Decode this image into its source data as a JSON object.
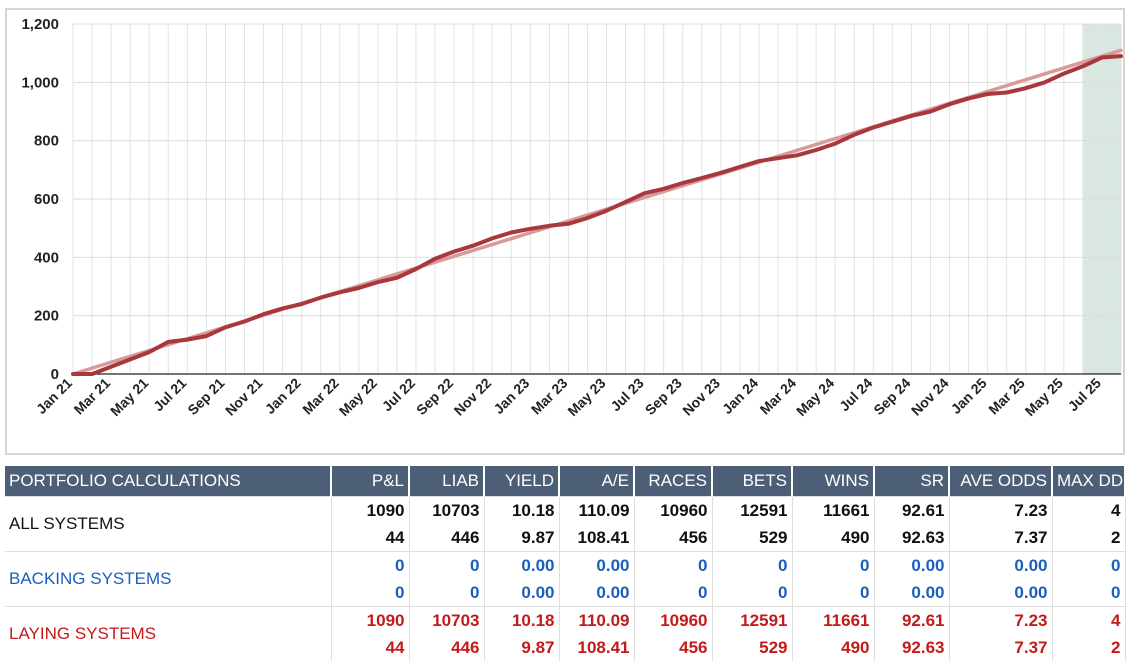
{
  "chart_data": {
    "type": "line",
    "y_ticks": [
      "0",
      "200",
      "400",
      "600",
      "800",
      "1,000",
      "1,200"
    ],
    "ylim": [
      0,
      1200
    ],
    "x_ticks": [
      "Jan 21",
      "Mar 21",
      "May 21",
      "Jul 21",
      "Sep 21",
      "Nov 21",
      "Jan 22",
      "Mar 22",
      "May 22",
      "Jul 22",
      "Sep 22",
      "Nov 22",
      "Jan 23",
      "Mar 23",
      "May 23",
      "Jul 23",
      "Sep 23",
      "Nov 23",
      "Jan 24",
      "Mar 24",
      "May 24",
      "Jul 24",
      "Sep 24",
      "Nov 24",
      "Jan 25",
      "Mar 25",
      "May 25",
      "Jul 25"
    ],
    "xlim": [
      "2021-01",
      "2025-08"
    ],
    "grid": true,
    "highlight_region": {
      "from": "2025-06",
      "to": "2025-08",
      "color": "#dae6e0"
    },
    "series": [
      {
        "color": "#a8383d",
        "points": [
          [
            "2021-01",
            0
          ],
          [
            "2021-02",
            0
          ],
          [
            "2021-03",
            25
          ],
          [
            "2021-04",
            50
          ],
          [
            "2021-05",
            75
          ],
          [
            "2021-06",
            110
          ],
          [
            "2021-07",
            118
          ],
          [
            "2021-08",
            130
          ],
          [
            "2021-09",
            160
          ],
          [
            "2021-10",
            180
          ],
          [
            "2021-11",
            205
          ],
          [
            "2021-12",
            225
          ],
          [
            "2022-01",
            240
          ],
          [
            "2022-02",
            262
          ],
          [
            "2022-03",
            280
          ],
          [
            "2022-04",
            295
          ],
          [
            "2022-05",
            315
          ],
          [
            "2022-06",
            330
          ],
          [
            "2022-07",
            360
          ],
          [
            "2022-08",
            395
          ],
          [
            "2022-09",
            420
          ],
          [
            "2022-10",
            440
          ],
          [
            "2022-11",
            465
          ],
          [
            "2022-12",
            485
          ],
          [
            "2023-01",
            498
          ],
          [
            "2023-02",
            508
          ],
          [
            "2023-03",
            515
          ],
          [
            "2023-04",
            535
          ],
          [
            "2023-05",
            560
          ],
          [
            "2023-06",
            590
          ],
          [
            "2023-07",
            620
          ],
          [
            "2023-08",
            635
          ],
          [
            "2023-09",
            655
          ],
          [
            "2023-10",
            672
          ],
          [
            "2023-11",
            690
          ],
          [
            "2023-12",
            710
          ],
          [
            "2024-01",
            730
          ],
          [
            "2024-02",
            740
          ],
          [
            "2024-03",
            750
          ],
          [
            "2024-04",
            768
          ],
          [
            "2024-05",
            790
          ],
          [
            "2024-06",
            820
          ],
          [
            "2024-07",
            845
          ],
          [
            "2024-08",
            865
          ],
          [
            "2024-09",
            885
          ],
          [
            "2024-10",
            900
          ],
          [
            "2024-11",
            925
          ],
          [
            "2024-12",
            945
          ],
          [
            "2025-01",
            960
          ],
          [
            "2025-02",
            965
          ],
          [
            "2025-03",
            980
          ],
          [
            "2025-04",
            1000
          ],
          [
            "2025-05",
            1030
          ],
          [
            "2025-06",
            1055
          ],
          [
            "2025-07",
            1085
          ],
          [
            "2025-08",
            1090
          ]
        ]
      },
      {
        "color": "#d99a9a",
        "points": [
          [
            "2021-01",
            0
          ],
          [
            "2025-08",
            1110
          ]
        ]
      }
    ]
  },
  "table": {
    "headers": [
      "PORTFOLIO CALCULATIONS",
      "P&L",
      "LIAB",
      "YIELD",
      "A/E",
      "RACES",
      "BETS",
      "WINS",
      "SR",
      "AVE ODDS",
      "MAX DD"
    ],
    "groups": [
      {
        "name": "ALL SYSTEMS",
        "rows": [
          [
            "1090",
            "10703",
            "10.18",
            "110.09",
            "10960",
            "12591",
            "11661",
            "92.61",
            "7.23",
            "4"
          ],
          [
            "44",
            "446",
            "9.87",
            "108.41",
            "456",
            "529",
            "490",
            "92.63",
            "7.37",
            "2"
          ]
        ]
      },
      {
        "name": "BACKING SYSTEMS",
        "rows": [
          [
            "0",
            "0",
            "0.00",
            "0.00",
            "0",
            "0",
            "0",
            "0.00",
            "0.00",
            "0"
          ],
          [
            "0",
            "0",
            "0.00",
            "0.00",
            "0",
            "0",
            "0",
            "0.00",
            "0.00",
            "0"
          ]
        ]
      },
      {
        "name": "LAYING SYSTEMS",
        "rows": [
          [
            "1090",
            "10703",
            "10.18",
            "110.09",
            "10960",
            "12591",
            "11661",
            "92.61",
            "7.23",
            "4"
          ],
          [
            "44",
            "446",
            "9.87",
            "108.41",
            "456",
            "529",
            "490",
            "92.63",
            "7.37",
            "2"
          ]
        ]
      }
    ]
  }
}
